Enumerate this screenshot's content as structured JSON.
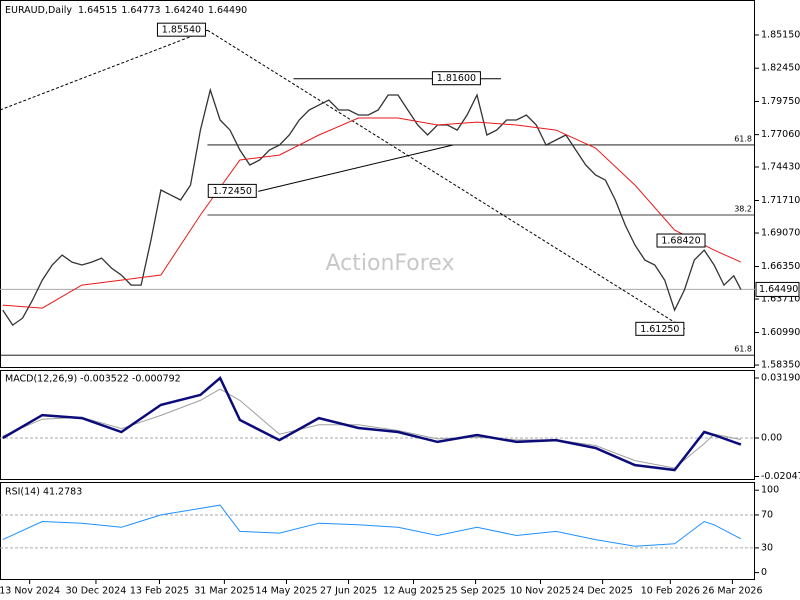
{
  "chart_data": {
    "type": "line",
    "header": {
      "title": "EURAUD,Daily",
      "ohlc": [
        "1.64515",
        "1.64773",
        "1.64240",
        "1.64490"
      ]
    },
    "watermark": "ActionForex",
    "xlim": [
      "2024-10-23",
      "2026-04-11"
    ],
    "xticks": [
      {
        "value": "2024-11-13",
        "label": "13 Nov 2024"
      },
      {
        "value": "2024-12-30",
        "label": "30 Dec 2024"
      },
      {
        "value": "2025-02-13",
        "label": "13 Feb 2025"
      },
      {
        "value": "2025-03-31",
        "label": "31 Mar 2025"
      },
      {
        "value": "2025-05-14",
        "label": "14 May 2025"
      },
      {
        "value": "2025-06-27",
        "label": "27 Jun 2025"
      },
      {
        "value": "2025-08-12",
        "label": "12 Aug 2025"
      },
      {
        "value": "2025-09-25",
        "label": "25 Sep 2025"
      },
      {
        "value": "2025-11-10",
        "label": "10 Nov 2025"
      },
      {
        "value": "2025-12-24",
        "label": "24 Dec 2025"
      },
      {
        "value": "2026-02-10",
        "label": "10 Feb 2026"
      },
      {
        "value": "2026-03-26",
        "label": "26 Mar 2026"
      }
    ],
    "ylim": [
      1.5811,
      1.8799
    ],
    "yticks": [
      {
        "value": 1.8515,
        "label": "1.85150"
      },
      {
        "value": 1.8245,
        "label": "1.82450"
      },
      {
        "value": 1.7975,
        "label": "1.79750"
      },
      {
        "value": 1.7706,
        "label": "1.77060"
      },
      {
        "value": 1.7443,
        "label": "1.74430"
      },
      {
        "value": 1.7171,
        "label": "1.71710"
      },
      {
        "value": 1.6907,
        "label": "1.69070"
      },
      {
        "value": 1.6635,
        "label": "1.66350"
      },
      {
        "value": 1.6371,
        "label": "1.63710"
      },
      {
        "value": 1.6099,
        "label": "1.60990"
      },
      {
        "value": 1.5835,
        "label": "1.58350"
      }
    ],
    "price": {
      "color": "#333333",
      "x": [
        "2024-10-25",
        "2024-11-01",
        "2024-11-08",
        "2024-11-15",
        "2024-11-22",
        "2024-11-29",
        "2024-12-06",
        "2024-12-13",
        "2024-12-20",
        "2024-12-27",
        "2025-01-03",
        "2025-01-10",
        "2025-01-17",
        "2025-01-24",
        "2025-01-31",
        "2025-02-07",
        "2025-02-14",
        "2025-02-21",
        "2025-02-28",
        "2025-03-07",
        "2025-03-14",
        "2025-03-21",
        "2025-03-28",
        "2025-04-04",
        "2025-04-11",
        "2025-04-18",
        "2025-04-25",
        "2025-05-02",
        "2025-05-09",
        "2025-05-16",
        "2025-05-23",
        "2025-05-30",
        "2025-06-06",
        "2025-06-13",
        "2025-06-20",
        "2025-06-27",
        "2025-07-04",
        "2025-07-11",
        "2025-07-18",
        "2025-07-25",
        "2025-08-01",
        "2025-08-08",
        "2025-08-15",
        "2025-08-22",
        "2025-08-29",
        "2025-09-05",
        "2025-09-12",
        "2025-09-19",
        "2025-09-26",
        "2025-10-03",
        "2025-10-10",
        "2025-10-17",
        "2025-10-24",
        "2025-10-31",
        "2025-11-07",
        "2025-11-14",
        "2025-11-21",
        "2025-11-28",
        "2025-12-05",
        "2025-12-12",
        "2025-12-19",
        "2025-12-26",
        "2026-01-02",
        "2026-01-09",
        "2026-01-16",
        "2026-01-23",
        "2026-01-30",
        "2026-02-06",
        "2026-02-13",
        "2026-02-20",
        "2026-02-27",
        "2026-03-06",
        "2026-03-13",
        "2026-03-20",
        "2026-03-27",
        "2026-04-01"
      ],
      "values": [
        1.6281,
        1.6159,
        1.6216,
        1.6362,
        1.6525,
        1.6647,
        1.6728,
        1.6671,
        1.6647,
        1.6671,
        1.6703,
        1.6622,
        1.6565,
        1.6484,
        1.6484,
        1.685,
        1.7256,
        1.7215,
        1.7175,
        1.7296,
        1.7743,
        1.8068,
        1.7825,
        1.7743,
        1.7581,
        1.7459,
        1.75,
        1.7581,
        1.7621,
        1.7703,
        1.7825,
        1.7906,
        1.7946,
        1.7987,
        1.7906,
        1.7906,
        1.7865,
        1.7865,
        1.7906,
        1.8028,
        1.8028,
        1.7906,
        1.7784,
        1.7703,
        1.7784,
        1.7784,
        1.7743,
        1.7865,
        1.8028,
        1.7703,
        1.7743,
        1.7825,
        1.7825,
        1.7865,
        1.7784,
        1.7621,
        1.7662,
        1.7703,
        1.7581,
        1.7459,
        1.7378,
        1.7337,
        1.7175,
        1.6972,
        1.6809,
        1.6687,
        1.6647,
        1.6525,
        1.6281,
        1.6444,
        1.6687,
        1.6768,
        1.6647,
        1.6484,
        1.656,
        1.6449
      ]
    },
    "ma": {
      "color": "#e8191b",
      "x": [
        "2024-10-25",
        "2024-11-22",
        "2024-12-20",
        "2025-01-17",
        "2025-02-14",
        "2025-03-14",
        "2025-04-11",
        "2025-05-09",
        "2025-06-06",
        "2025-07-04",
        "2025-08-01",
        "2025-08-29",
        "2025-09-26",
        "2025-10-24",
        "2025-11-21",
        "2025-12-19",
        "2026-01-16",
        "2026-02-13",
        "2026-03-13",
        "2026-04-01"
      ],
      "values": [
        1.6322,
        1.6297,
        1.6484,
        1.6525,
        1.6566,
        1.7053,
        1.75,
        1.754,
        1.7703,
        1.7841,
        1.7841,
        1.7784,
        1.7808,
        1.7784,
        1.7743,
        1.7597,
        1.7296,
        1.6931,
        1.6768,
        1.6671
      ]
    },
    "annotations": [
      {
        "value": 1.8554,
        "label": "1.85540",
        "x": "2025-03-19",
        "side": "left"
      },
      {
        "value": 1.816,
        "label": "1.81600",
        "x": "2025-08-24",
        "side": "right"
      },
      {
        "value": 1.7245,
        "label": "1.72450",
        "x": "2025-04-24",
        "side": "left"
      },
      {
        "value": 1.6842,
        "label": "1.68420",
        "x": "2026-03-08",
        "side": "left"
      },
      {
        "value": 1.6125,
        "label": "1.61250",
        "x": "2026-02-21",
        "side": "left"
      }
    ],
    "trendlines": [
      {
        "style": "dotted",
        "x": [
          "2024-10-23",
          "2025-03-19"
        ],
        "values": [
          1.7906,
          1.8554
        ]
      },
      {
        "style": "dotted",
        "x": [
          "2025-03-19",
          "2026-02-21"
        ],
        "values": [
          1.8554,
          1.6125
        ]
      },
      {
        "style": "solid",
        "x": [
          "2025-04-24",
          "2025-09-09"
        ],
        "values": [
          1.7245,
          1.7622
        ]
      },
      {
        "style": "solid",
        "x": [
          "2025-05-19",
          "2025-10-13"
        ],
        "values": [
          1.816,
          1.816
        ]
      }
    ],
    "fib_levels": [
      {
        "label": "61.8",
        "value": 1.7622,
        "from": "2025-03-19"
      },
      {
        "label": "38.2",
        "value": 1.7053,
        "from": "2025-03-19"
      },
      {
        "label": "61.8",
        "value": 1.5915,
        "from": "2024-10-23"
      }
    ],
    "last_price": {
      "value": 1.6449,
      "label": "1.64490"
    },
    "macd": {
      "title": "MACD(12,26,9) -0.003522 -0.000792",
      "ylim": [
        -0.02234,
        0.03617
      ],
      "yticks": [
        0.031907,
        {
          "value": 0,
          "label": "0.00"
        },
        -0.020479
      ],
      "zero_line": true,
      "x": [
        "2024-10-25",
        "2024-11-22",
        "2024-12-20",
        "2025-01-17",
        "2025-02-14",
        "2025-03-14",
        "2025-03-28",
        "2025-04-11",
        "2025-05-09",
        "2025-06-06",
        "2025-07-04",
        "2025-08-01",
        "2025-08-29",
        "2025-09-26",
        "2025-10-24",
        "2025-11-21",
        "2025-12-19",
        "2026-01-16",
        "2026-02-13",
        "2026-03-06",
        "2026-03-13",
        "2026-04-01"
      ],
      "macd": {
        "color": "#0b0b7a",
        "values": [
          0,
          0.0122,
          0.0106,
          0.0032,
          0.0176,
          0.0229,
          0.0319,
          0.0096,
          -0.0011,
          0.0106,
          0.0053,
          0.0032,
          -0.0021,
          0.0016,
          -0.0021,
          -0.0011,
          -0.0053,
          -0.0144,
          -0.017,
          0.0032,
          0.0016,
          -0.0035
        ]
      },
      "signal": {
        "color": "#a0a0a0",
        "values": [
          0.001,
          0.01,
          0.011,
          0.005,
          0.012,
          0.02,
          0.026,
          0.02,
          0.002,
          0.007,
          0.007,
          0.004,
          -0.0005,
          0.0005,
          -0.001,
          -0.001,
          -0.004,
          -0.012,
          -0.016,
          -0.003,
          0.002,
          -0.0008
        ]
      }
    },
    "rsi": {
      "title": "RSI(14) 41.2783",
      "ylim": [
        -9,
        110
      ],
      "yticks": [
        100,
        70,
        30,
        0
      ],
      "levels": [
        70,
        30
      ],
      "color": "#1e90ff",
      "x": [
        "2024-10-25",
        "2024-11-22",
        "2024-12-20",
        "2025-01-17",
        "2025-02-14",
        "2025-03-14",
        "2025-03-28",
        "2025-04-11",
        "2025-05-09",
        "2025-06-06",
        "2025-07-04",
        "2025-08-01",
        "2025-08-29",
        "2025-09-26",
        "2025-10-24",
        "2025-11-21",
        "2025-12-19",
        "2026-01-16",
        "2026-02-13",
        "2026-03-06",
        "2026-03-13",
        "2026-04-01"
      ],
      "values": [
        40,
        62,
        60,
        55,
        70,
        78,
        82,
        50,
        48,
        60,
        58,
        55,
        45,
        55,
        45,
        50,
        40,
        32,
        35,
        62,
        58,
        41
      ]
    }
  }
}
